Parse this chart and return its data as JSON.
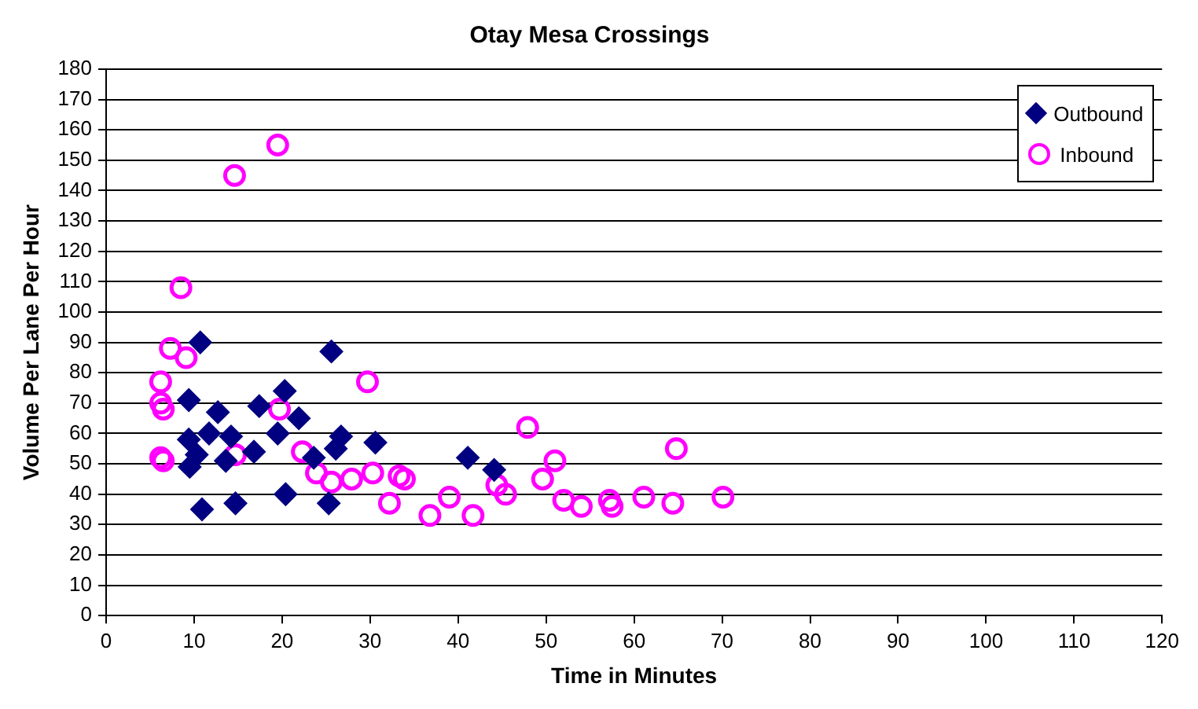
{
  "chart_data": {
    "type": "scatter",
    "title": "Otay Mesa Crossings",
    "xlabel": "Time in Minutes",
    "ylabel": "Volume Per Lane Per Hour",
    "xlim": [
      0,
      120
    ],
    "xticks": [
      0,
      10,
      20,
      30,
      40,
      50,
      60,
      70,
      80,
      90,
      100,
      110,
      120
    ],
    "ylim": [
      0,
      180
    ],
    "yticks": [
      0,
      10,
      20,
      30,
      40,
      50,
      60,
      70,
      80,
      90,
      100,
      110,
      120,
      130,
      140,
      150,
      160,
      170,
      180
    ],
    "grid": "y",
    "legend": "top right",
    "series": [
      {
        "name": "Outbound",
        "color": "#000080",
        "marker": "diamond",
        "x": [
          10.7,
          9.4,
          12.7,
          11.7,
          14.2,
          9.4,
          10.3,
          9.5,
          13.6,
          16.8,
          17.4,
          20.3,
          19.5,
          21.9,
          10.9,
          14.7,
          20.4,
          25.6,
          26.7,
          26.1,
          23.6,
          25.3,
          30.6,
          41.1,
          44.1
        ],
        "values": [
          90,
          71,
          67,
          60,
          59,
          58,
          53,
          49,
          51,
          54,
          69,
          74,
          60,
          65,
          35,
          37,
          40,
          87,
          59,
          55,
          52,
          37,
          57,
          52,
          48
        ]
      },
      {
        "name": "Inbound",
        "color": "#ff00ff",
        "marker": "circle",
        "x": [
          8.5,
          7.3,
          9.1,
          6.2,
          6.2,
          6.5,
          6.2,
          6.5,
          19.7,
          14.7,
          29.7,
          22.3,
          23.9,
          25.6,
          27.9,
          30.3,
          33.3,
          33.9,
          32.2,
          14.6,
          19.5,
          36.8,
          39,
          41.7,
          44.4,
          45.4,
          47.9,
          49.6,
          51,
          52,
          54,
          57.2,
          57.5,
          61.1,
          64.4,
          64.8,
          70.1
        ],
        "values": [
          108,
          88,
          85,
          77,
          70,
          68,
          52,
          51,
          68,
          53,
          77,
          54,
          47,
          44,
          45,
          47,
          46,
          45,
          37,
          145,
          155,
          33,
          39,
          33,
          43,
          40,
          62,
          45,
          51,
          38,
          36,
          38,
          36,
          39,
          37,
          55,
          39
        ]
      }
    ]
  }
}
